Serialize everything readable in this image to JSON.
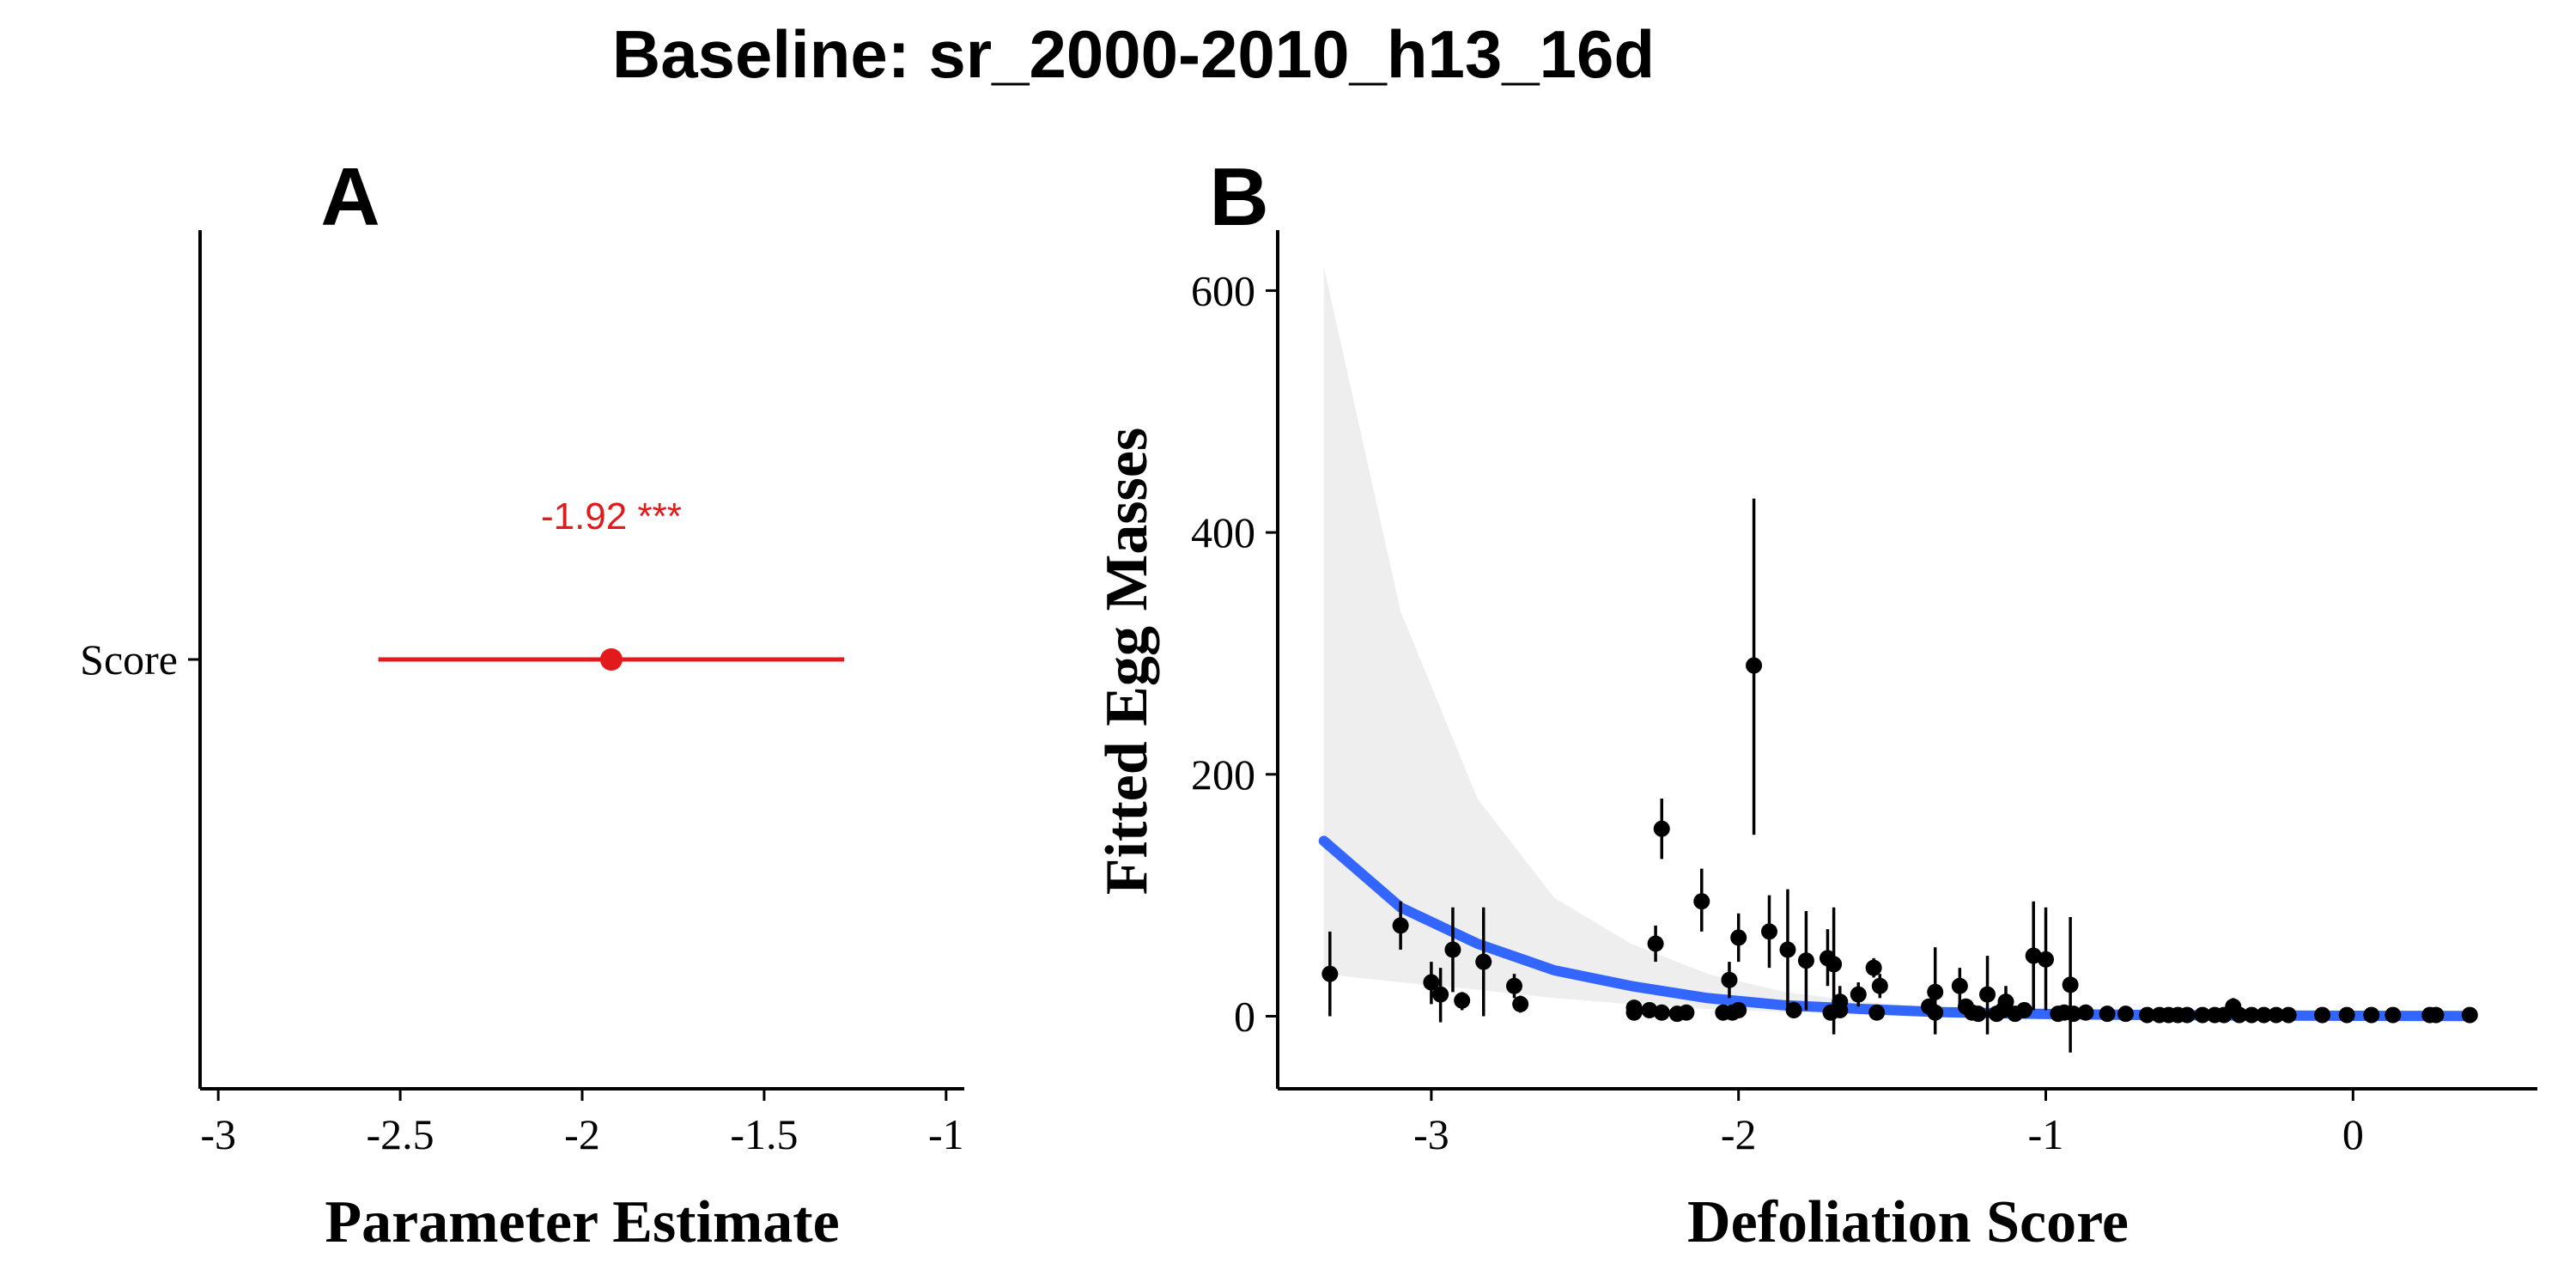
{
  "figure": {
    "title": "Baseline: sr_2000-2010_h13_16d"
  },
  "chart_data": [
    {
      "panel": "A",
      "type": "scatter",
      "title": "",
      "xlabel": "Parameter Estimate",
      "ylabel": "",
      "xlim": [
        -3.05,
        -0.95
      ],
      "xticks": [
        "-3",
        "-2.5",
        "-2",
        "-1.5",
        "-1"
      ],
      "categories": [
        "Score"
      ],
      "points": [
        {
          "category": "Score",
          "estimate": -1.92,
          "lower": -2.56,
          "upper": -1.28
        }
      ],
      "annotation": "-1.92 ***",
      "color": "#e31a1c",
      "grid": false,
      "legend": "none"
    },
    {
      "panel": "B",
      "type": "scatter",
      "title": "",
      "xlabel": "Defoliation Score",
      "ylabel": "Fitted Egg Masses",
      "xlim": [
        -3.5,
        0.6
      ],
      "ylim": [
        -60,
        650
      ],
      "xticks": [
        "-3",
        "-2",
        "-1",
        "0"
      ],
      "yticks": [
        "0",
        "200",
        "400",
        "600"
      ],
      "point_color": "#000000",
      "line_color": "#3366ff",
      "ribbon_color": "#ebebeb",
      "grid": false,
      "legend": "none",
      "points": [
        {
          "x": -3.33,
          "y": 35,
          "lo": 0,
          "hi": 70
        },
        {
          "x": -3.1,
          "y": 75,
          "lo": 55,
          "hi": 95
        },
        {
          "x": -3.0,
          "y": 28,
          "lo": 10,
          "hi": 45
        },
        {
          "x": -2.97,
          "y": 18,
          "lo": -5,
          "hi": 40
        },
        {
          "x": -2.93,
          "y": 55,
          "lo": 20,
          "hi": 90
        },
        {
          "x": -2.9,
          "y": 13,
          "lo": 5,
          "hi": 20
        },
        {
          "x": -2.83,
          "y": 45,
          "lo": 0,
          "hi": 90
        },
        {
          "x": -2.73,
          "y": 25,
          "lo": 15,
          "hi": 35
        },
        {
          "x": -2.71,
          "y": 10,
          "lo": 3,
          "hi": 17
        },
        {
          "x": -2.34,
          "y": 7,
          "lo": 2,
          "hi": 12
        },
        {
          "x": -2.34,
          "y": 3,
          "lo": 0,
          "hi": 6
        },
        {
          "x": -2.29,
          "y": 5,
          "lo": 0,
          "hi": 10
        },
        {
          "x": -2.27,
          "y": 60,
          "lo": 45,
          "hi": 75
        },
        {
          "x": -2.25,
          "y": 155,
          "lo": 130,
          "hi": 180
        },
        {
          "x": -2.25,
          "y": 3,
          "lo": 0,
          "hi": 7
        },
        {
          "x": -2.2,
          "y": 2,
          "lo": 0,
          "hi": 5
        },
        {
          "x": -2.17,
          "y": 3,
          "lo": 0,
          "hi": 6
        },
        {
          "x": -2.12,
          "y": 95,
          "lo": 70,
          "hi": 122
        },
        {
          "x": -2.05,
          "y": 3,
          "lo": 0,
          "hi": 7
        },
        {
          "x": -2.03,
          "y": 30,
          "lo": 15,
          "hi": 45
        },
        {
          "x": -2.02,
          "y": 3,
          "lo": 0,
          "hi": 6
        },
        {
          "x": -2.0,
          "y": 65,
          "lo": 45,
          "hi": 85
        },
        {
          "x": -2.0,
          "y": 5,
          "lo": 0,
          "hi": 10
        },
        {
          "x": -1.95,
          "y": 290,
          "lo": 150,
          "hi": 428
        },
        {
          "x": -1.9,
          "y": 70,
          "lo": 40,
          "hi": 100
        },
        {
          "x": -1.84,
          "y": 55,
          "lo": 5,
          "hi": 105
        },
        {
          "x": -1.82,
          "y": 5,
          "lo": 0,
          "hi": 12
        },
        {
          "x": -1.78,
          "y": 46,
          "lo": 5,
          "hi": 87
        },
        {
          "x": -1.71,
          "y": 48,
          "lo": 25,
          "hi": 72
        },
        {
          "x": -1.7,
          "y": 3,
          "lo": 0,
          "hi": 6
        },
        {
          "x": -1.69,
          "y": 43,
          "lo": -15,
          "hi": 90
        },
        {
          "x": -1.67,
          "y": 12,
          "lo": 0,
          "hi": 25
        },
        {
          "x": -1.67,
          "y": 5,
          "lo": 0,
          "hi": 10
        },
        {
          "x": -1.61,
          "y": 18,
          "lo": 8,
          "hi": 28
        },
        {
          "x": -1.56,
          "y": 40,
          "lo": 32,
          "hi": 48
        },
        {
          "x": -1.55,
          "y": 3,
          "lo": 0,
          "hi": 6
        },
        {
          "x": -1.54,
          "y": 25,
          "lo": 15,
          "hi": 35
        },
        {
          "x": -1.38,
          "y": 8,
          "lo": 2,
          "hi": 14
        },
        {
          "x": -1.36,
          "y": 20,
          "lo": -15,
          "hi": 57
        },
        {
          "x": -1.36,
          "y": 3,
          "lo": 0,
          "hi": 6
        },
        {
          "x": -1.28,
          "y": 25,
          "lo": 10,
          "hi": 40
        },
        {
          "x": -1.26,
          "y": 8,
          "lo": 2,
          "hi": 14
        },
        {
          "x": -1.24,
          "y": 3,
          "lo": 0,
          "hi": 8
        },
        {
          "x": -1.22,
          "y": 2,
          "lo": 0,
          "hi": 5
        },
        {
          "x": -1.19,
          "y": 18,
          "lo": -15,
          "hi": 50
        },
        {
          "x": -1.16,
          "y": 2,
          "lo": 0,
          "hi": 5
        },
        {
          "x": -1.14,
          "y": 5,
          "lo": 0,
          "hi": 10
        },
        {
          "x": -1.13,
          "y": 12,
          "lo": 0,
          "hi": 25
        },
        {
          "x": -1.1,
          "y": 2,
          "lo": 0,
          "hi": 5
        },
        {
          "x": -1.07,
          "y": 5,
          "lo": 0,
          "hi": 10
        },
        {
          "x": -1.04,
          "y": 50,
          "lo": 5,
          "hi": 95
        },
        {
          "x": -1.0,
          "y": 47,
          "lo": 5,
          "hi": 90
        },
        {
          "x": -0.96,
          "y": 2,
          "lo": 0,
          "hi": 5
        },
        {
          "x": -0.94,
          "y": 3,
          "lo": 0,
          "hi": 6
        },
        {
          "x": -0.92,
          "y": 26,
          "lo": -30,
          "hi": 82
        },
        {
          "x": -0.91,
          "y": 2,
          "lo": 0,
          "hi": 5
        },
        {
          "x": -0.87,
          "y": 3,
          "lo": 0,
          "hi": 6
        },
        {
          "x": -0.8,
          "y": 2,
          "lo": 0,
          "hi": 4
        },
        {
          "x": -0.74,
          "y": 2,
          "lo": 0,
          "hi": 4
        },
        {
          "x": -0.67,
          "y": 1,
          "lo": 0,
          "hi": 3
        },
        {
          "x": -0.63,
          "y": 1,
          "lo": 0,
          "hi": 3
        },
        {
          "x": -0.6,
          "y": 1,
          "lo": 0,
          "hi": 3
        },
        {
          "x": -0.57,
          "y": 1,
          "lo": 0,
          "hi": 3
        },
        {
          "x": -0.54,
          "y": 1,
          "lo": 0,
          "hi": 3
        },
        {
          "x": -0.49,
          "y": 1,
          "lo": 0,
          "hi": 3
        },
        {
          "x": -0.45,
          "y": 1,
          "lo": 0,
          "hi": 3
        },
        {
          "x": -0.42,
          "y": 1,
          "lo": 0,
          "hi": 3
        },
        {
          "x": -0.39,
          "y": 8,
          "lo": 3,
          "hi": 15
        },
        {
          "x": -0.37,
          "y": 1,
          "lo": 0,
          "hi": 3
        },
        {
          "x": -0.33,
          "y": 1,
          "lo": 0,
          "hi": 3
        },
        {
          "x": -0.29,
          "y": 1,
          "lo": 0,
          "hi": 3
        },
        {
          "x": -0.25,
          "y": 1,
          "lo": 0,
          "hi": 3
        },
        {
          "x": -0.21,
          "y": 1,
          "lo": 0,
          "hi": 3
        },
        {
          "x": -0.1,
          "y": 1,
          "lo": 0,
          "hi": 3
        },
        {
          "x": -0.02,
          "y": 1,
          "lo": 0,
          "hi": 3
        },
        {
          "x": 0.06,
          "y": 1,
          "lo": 0,
          "hi": 3
        },
        {
          "x": 0.13,
          "y": 1,
          "lo": 0,
          "hi": 3
        },
        {
          "x": 0.25,
          "y": 1,
          "lo": 0,
          "hi": 3
        },
        {
          "x": 0.27,
          "y": 1,
          "lo": 0,
          "hi": 3
        },
        {
          "x": 0.38,
          "y": 1,
          "lo": 0,
          "hi": 3
        }
      ],
      "fit": {
        "x": [
          -3.35,
          -3.1,
          -2.85,
          -2.6,
          -2.35,
          -2.1,
          -1.85,
          -1.6,
          -1.35,
          -1.1,
          -0.85,
          -0.6,
          -0.35,
          -0.1,
          0.15,
          0.38
        ],
        "y": [
          145,
          90,
          60,
          38,
          25,
          15,
          9,
          6,
          3.5,
          2.2,
          1.4,
          0.9,
          0.6,
          0.4,
          0.3,
          0.2
        ],
        "lo": [
          35,
          28,
          22,
          15,
          10,
          6,
          3.5,
          2,
          1.2,
          0.6,
          0.3,
          0.15,
          0.05,
          0,
          0,
          0
        ],
        "hi": [
          620,
          335,
          180,
          98,
          60,
          35,
          20,
          12,
          7,
          4.5,
          3,
          2,
          1.5,
          1,
          0.8,
          0.6
        ]
      }
    }
  ]
}
